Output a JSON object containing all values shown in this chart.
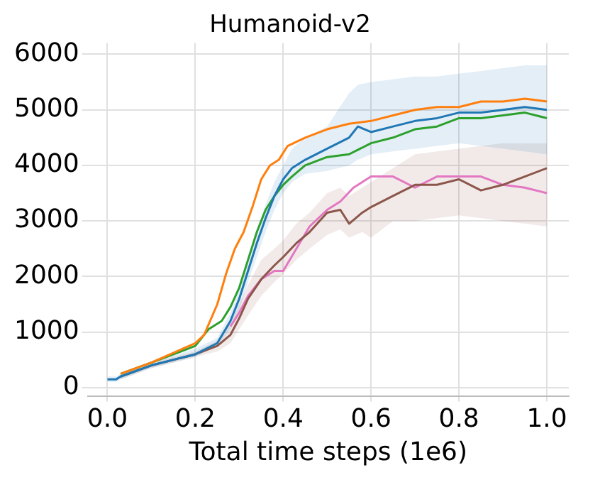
{
  "chart_data": {
    "type": "line",
    "title": "Humanoid-v2",
    "xlabel": "Total time steps (1e6)",
    "xlim": [
      -0.045,
      1.05
    ],
    "ylim": [
      -150,
      6200
    ],
    "xticks": [
      {
        "value": 0,
        "label": "0.0"
      },
      {
        "value": 0.2,
        "label": "0.2"
      },
      {
        "value": 0.4,
        "label": "0.4"
      },
      {
        "value": 0.6,
        "label": "0.6"
      },
      {
        "value": 0.8,
        "label": "0.8"
      },
      {
        "value": 1,
        "label": "1.0"
      }
    ],
    "yticks": [
      0,
      1000,
      2000,
      3000,
      4000,
      5000,
      6000
    ],
    "grid": true,
    "marker": "none",
    "line_style": "solid",
    "series": [
      {
        "color": "#1f77b4",
        "x": [
          0,
          0.02,
          0.03,
          0.1,
          0.2,
          0.25,
          0.28,
          0.3,
          0.32,
          0.34,
          0.36,
          0.38,
          0.4,
          0.42,
          0.45,
          0.5,
          0.55,
          0.57,
          0.6,
          0.65,
          0.7,
          0.75,
          0.8,
          0.85,
          0.9,
          0.95,
          1.0
        ],
        "values": [
          150,
          150,
          200,
          400,
          600,
          800,
          1200,
          1600,
          2100,
          2600,
          3050,
          3450,
          3750,
          3950,
          4100,
          4300,
          4500,
          4700,
          4600,
          4700,
          4800,
          4850,
          4950,
          4950,
          5000,
          5050,
          5000
        ],
        "lower": [
          100,
          100,
          150,
          350,
          550,
          750,
          1050,
          1400,
          1900,
          2350,
          2800,
          3200,
          3500,
          3700,
          3850,
          3900,
          4000,
          4100,
          4200,
          4250,
          4300,
          4350,
          4400,
          4350,
          4300,
          4250,
          4200
        ],
        "upper": [
          200,
          200,
          250,
          450,
          700,
          900,
          1350,
          1750,
          2350,
          2850,
          3300,
          3700,
          4000,
          4300,
          4500,
          4700,
          5300,
          5450,
          5500,
          5550,
          5600,
          5600,
          5650,
          5700,
          5750,
          5800,
          5800
        ]
      },
      {
        "color": "#ff7f0e",
        "x": [
          0.03,
          0.1,
          0.2,
          0.22,
          0.25,
          0.27,
          0.29,
          0.31,
          0.33,
          0.35,
          0.37,
          0.39,
          0.41,
          0.45,
          0.5,
          0.55,
          0.6,
          0.65,
          0.7,
          0.75,
          0.8,
          0.85,
          0.9,
          0.95,
          1.0
        ],
        "values": [
          250,
          450,
          800,
          950,
          1500,
          2050,
          2500,
          2800,
          3250,
          3750,
          4000,
          4100,
          4350,
          4500,
          4650,
          4750,
          4800,
          4900,
          5000,
          5050,
          5050,
          5150,
          5150,
          5200,
          5150
        ]
      },
      {
        "color": "#2ca02c",
        "x": [
          0.03,
          0.1,
          0.2,
          0.23,
          0.26,
          0.28,
          0.3,
          0.32,
          0.34,
          0.36,
          0.38,
          0.4,
          0.42,
          0.45,
          0.5,
          0.55,
          0.6,
          0.65,
          0.7,
          0.75,
          0.8,
          0.85,
          0.9,
          0.95,
          1.0
        ],
        "values": [
          250,
          450,
          750,
          1050,
          1200,
          1450,
          1800,
          2300,
          2800,
          3200,
          3450,
          3650,
          3800,
          4000,
          4150,
          4200,
          4400,
          4500,
          4650,
          4700,
          4850,
          4850,
          4900,
          4950,
          4850
        ]
      },
      {
        "color": "#8c564b",
        "x": [
          0.03,
          0.1,
          0.2,
          0.25,
          0.28,
          0.3,
          0.32,
          0.35,
          0.38,
          0.4,
          0.43,
          0.46,
          0.5,
          0.53,
          0.55,
          0.58,
          0.6,
          0.65,
          0.7,
          0.75,
          0.8,
          0.85,
          0.9,
          0.95,
          1.0
        ],
        "values": [
          200,
          400,
          600,
          750,
          950,
          1250,
          1600,
          1950,
          2200,
          2350,
          2600,
          2800,
          3150,
          3200,
          2950,
          3150,
          3250,
          3450,
          3650,
          3650,
          3750,
          3550,
          3650,
          3800,
          3950
        ],
        "lower": [
          150,
          350,
          550,
          650,
          800,
          1050,
          1300,
          1650,
          1900,
          2050,
          2300,
          2500,
          2750,
          2850,
          2700,
          2800,
          2700,
          3000,
          3000,
          3050,
          3100,
          3050,
          3000,
          2950,
          2900
        ],
        "upper": [
          250,
          450,
          650,
          850,
          1150,
          1500,
          1850,
          2300,
          2500,
          2650,
          2950,
          3150,
          3500,
          3600,
          3450,
          3600,
          3700,
          3950,
          4200,
          4250,
          4300,
          4350,
          4400,
          4400,
          4400
        ]
      },
      {
        "color": "#e377c2",
        "x": [
          0.28,
          0.3,
          0.32,
          0.35,
          0.38,
          0.4,
          0.43,
          0.46,
          0.5,
          0.53,
          0.56,
          0.6,
          0.65,
          0.7,
          0.75,
          0.8,
          0.85,
          0.9,
          0.95,
          1.0
        ],
        "values": [
          1100,
          1350,
          1650,
          1950,
          2100,
          2100,
          2500,
          2900,
          3200,
          3350,
          3600,
          3800,
          3800,
          3600,
          3800,
          3800,
          3800,
          3650,
          3600,
          3500
        ]
      }
    ]
  }
}
